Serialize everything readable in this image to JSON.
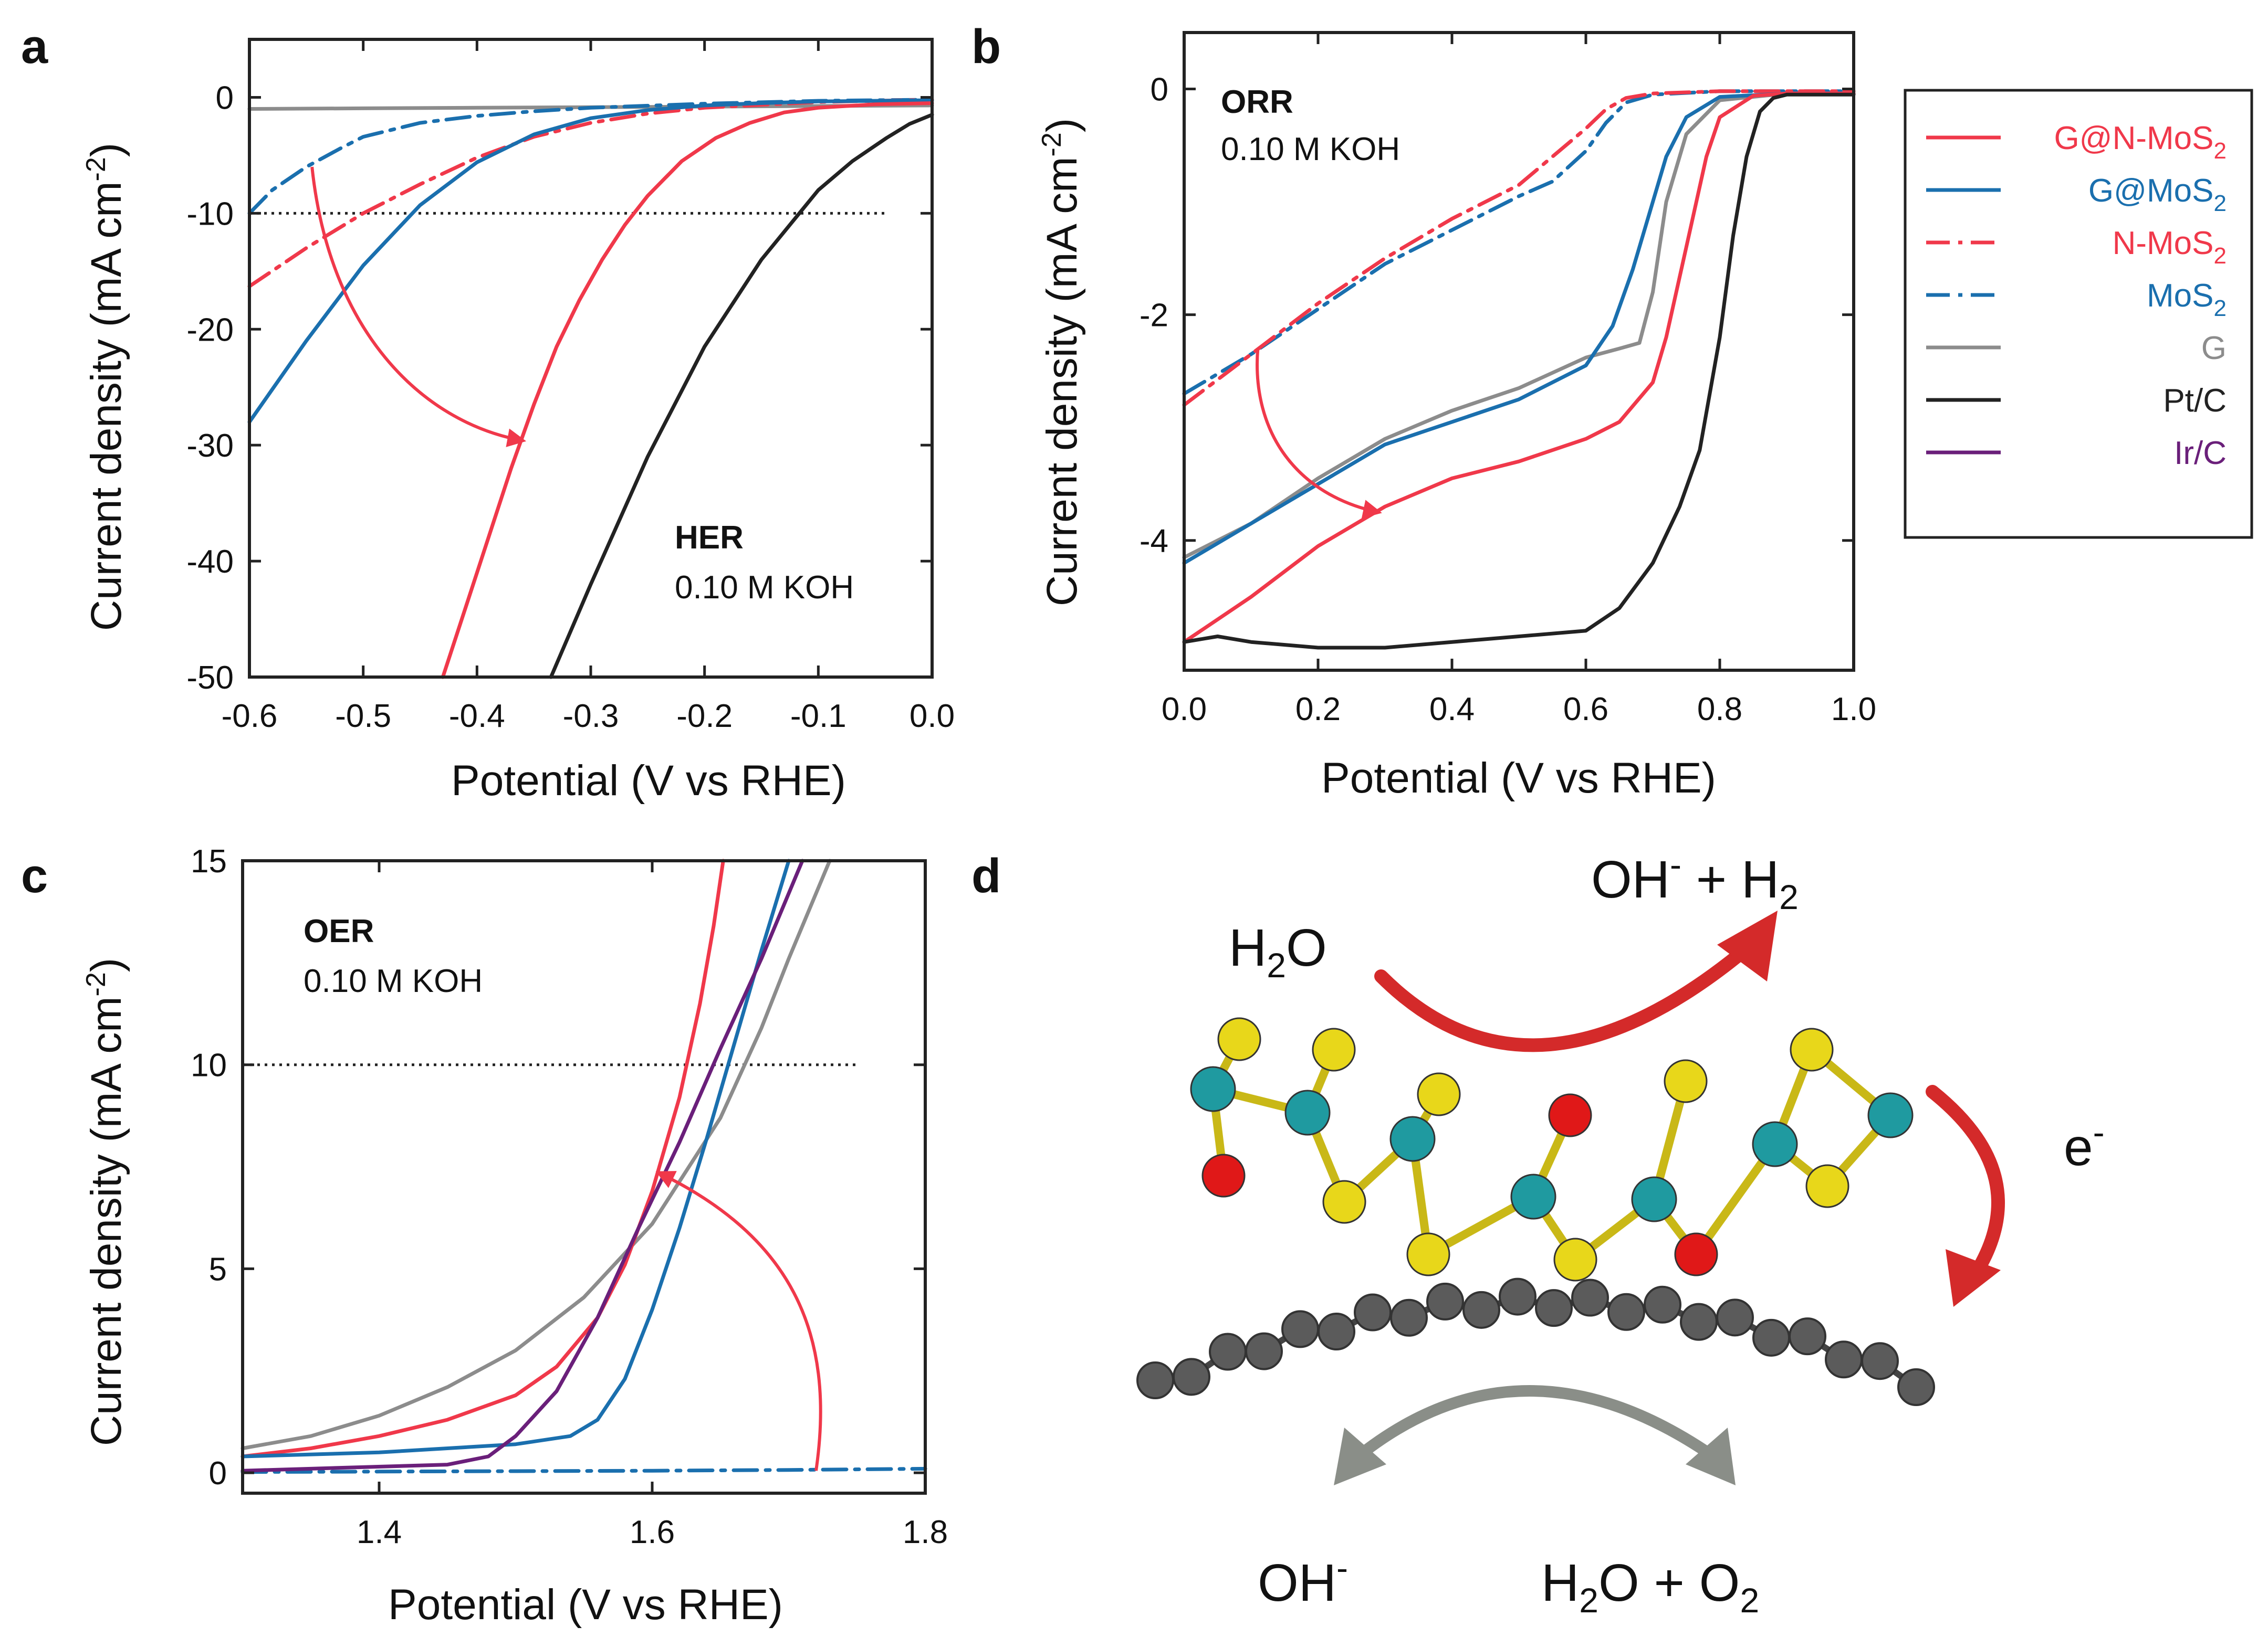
{
  "colors": {
    "gnmos2": "#f0384a",
    "gmos2": "#1a6fae",
    "nmos2": "#f0384a",
    "mos2": "#1a6fae",
    "g": "#8c8c8c",
    "ptc": "#222222",
    "irc": "#6a1f7a",
    "arrow_red": "#d42a2a",
    "arrow_grey": "#8a8e88"
  },
  "legend": [
    {
      "key": "gnmos2",
      "base": "G@N-MoS",
      "sub": "2",
      "dash": false
    },
    {
      "key": "gmos2",
      "base": "G@MoS",
      "sub": "2",
      "dash": false
    },
    {
      "key": "nmos2",
      "base": "N-MoS",
      "sub": "2",
      "dash": true
    },
    {
      "key": "mos2",
      "base": "MoS",
      "sub": "2",
      "dash": true
    },
    {
      "key": "g",
      "base": "G",
      "sub": "",
      "dash": false
    },
    {
      "key": "ptc",
      "base": "Pt/C",
      "sub": "",
      "dash": false
    },
    {
      "key": "irc",
      "base": "Ir/C",
      "sub": "",
      "dash": false
    }
  ],
  "chart_data": [
    {
      "id": "a",
      "type": "line",
      "panel_label": "a",
      "annotation_bold": "HER",
      "annotation": "0.10 M KOH",
      "xlabel": "Potential (V vs RHE)",
      "ylabel": "Current density (mA cm",
      "ylabel_sup": "-2",
      "xlim": [
        -0.6,
        0.0
      ],
      "ylim": [
        -50,
        5
      ],
      "xticks": [
        -0.6,
        -0.5,
        -0.4,
        -0.3,
        -0.2,
        -0.1,
        0.0
      ],
      "xticklabels": [
        "-0.6",
        "-0.5",
        "-0.4",
        "-0.3",
        "-0.2",
        "-0.1",
        "0.0"
      ],
      "yticks": [
        0,
        -10,
        -20,
        -30,
        -40,
        -50
      ],
      "yticklabels": [
        "0",
        "-10",
        "-20",
        "-30",
        "-40",
        "-50"
      ],
      "ref_line": {
        "y": -10,
        "x": [
          -0.6,
          -0.04
        ]
      },
      "series": [
        {
          "name": "G",
          "key": "g",
          "dash": false,
          "x": [
            -0.6,
            -0.5,
            -0.4,
            -0.3,
            -0.2,
            -0.1,
            0.0
          ],
          "y": [
            -1.0,
            -0.95,
            -0.9,
            -0.85,
            -0.8,
            -0.75,
            -0.7
          ]
        },
        {
          "name": "MoS2",
          "key": "mos2",
          "dash": true,
          "x": [
            -0.6,
            -0.58,
            -0.55,
            -0.52,
            -0.5,
            -0.45,
            -0.4,
            -0.35,
            -0.3,
            -0.2,
            -0.1,
            0.0
          ],
          "y": [
            -10,
            -8.0,
            -6.0,
            -4.4,
            -3.4,
            -2.2,
            -1.6,
            -1.2,
            -0.9,
            -0.55,
            -0.3,
            -0.2
          ]
        },
        {
          "name": "N-MoS2",
          "key": "nmos2",
          "dash": true,
          "x": [
            -0.6,
            -0.55,
            -0.5,
            -0.45,
            -0.4,
            -0.35,
            -0.3,
            -0.25,
            -0.2,
            -0.1,
            0.0
          ],
          "y": [
            -16.3,
            -13.0,
            -10.0,
            -7.5,
            -5.2,
            -3.4,
            -2.2,
            -1.4,
            -0.9,
            -0.4,
            -0.2
          ]
        },
        {
          "name": "G@MoS2",
          "key": "gmos2",
          "dash": false,
          "x": [
            -0.6,
            -0.55,
            -0.5,
            -0.45,
            -0.4,
            -0.35,
            -0.3,
            -0.25,
            -0.2,
            -0.15,
            -0.1,
            0.0
          ],
          "y": [
            -28,
            -21,
            -14.5,
            -9.3,
            -5.6,
            -3.2,
            -1.8,
            -1.1,
            -0.7,
            -0.5,
            -0.35,
            -0.25
          ]
        },
        {
          "name": "G@N-MoS2",
          "key": "gnmos2",
          "dash": false,
          "x": [
            -0.43,
            -0.41,
            -0.39,
            -0.37,
            -0.35,
            -0.33,
            -0.31,
            -0.29,
            -0.27,
            -0.25,
            -0.22,
            -0.19,
            -0.16,
            -0.13,
            -0.1,
            -0.05,
            0.0
          ],
          "y": [
            -50,
            -44,
            -38,
            -32,
            -26.5,
            -21.5,
            -17.5,
            -14,
            -11,
            -8.5,
            -5.5,
            -3.5,
            -2.2,
            -1.3,
            -0.9,
            -0.6,
            -0.5
          ]
        },
        {
          "name": "Pt/C",
          "key": "ptc",
          "dash": false,
          "x": [
            -0.335,
            -0.3,
            -0.25,
            -0.2,
            -0.15,
            -0.1,
            -0.07,
            -0.04,
            -0.02,
            0.0
          ],
          "y": [
            -50,
            -42,
            -31,
            -21.5,
            -14,
            -8,
            -5.5,
            -3.5,
            -2.3,
            -1.5
          ]
        }
      ],
      "arrow": {
        "points": [
          [
            -0.545,
            -6
          ],
          [
            -0.53,
            -20
          ],
          [
            -0.45,
            -28
          ],
          [
            -0.36,
            -29.6
          ]
        ]
      }
    },
    {
      "id": "b",
      "type": "line",
      "panel_label": "b",
      "annotation_bold": "ORR",
      "annotation": "0.10 M KOH",
      "xlabel": "Potential (V vs RHE)",
      "ylabel": "Current density (mA cm",
      "ylabel_sup": "-2",
      "xlim": [
        0.0,
        1.0
      ],
      "ylim": [
        -5.15,
        0.5
      ],
      "xticks": [
        0.0,
        0.2,
        0.4,
        0.6,
        0.8,
        1.0
      ],
      "xticklabels": [
        "0.0",
        "0.2",
        "0.4",
        "0.6",
        "0.8",
        "1.0"
      ],
      "yticks": [
        0,
        -2,
        -4
      ],
      "yticklabels": [
        "0",
        "-2",
        "-4"
      ],
      "series": [
        {
          "name": "MoS2",
          "key": "mos2",
          "dash": true,
          "x": [
            0.0,
            0.1,
            0.2,
            0.3,
            0.4,
            0.5,
            0.55,
            0.6,
            0.63,
            0.66,
            0.7,
            0.8,
            0.9,
            1.0
          ],
          "y": [
            -2.7,
            -2.35,
            -1.95,
            -1.55,
            -1.25,
            -0.95,
            -0.82,
            -0.55,
            -0.3,
            -0.12,
            -0.05,
            -0.02,
            -0.02,
            -0.02
          ]
        },
        {
          "name": "N-MoS2",
          "key": "nmos2",
          "dash": true,
          "x": [
            0.0,
            0.1,
            0.2,
            0.3,
            0.4,
            0.5,
            0.55,
            0.6,
            0.63,
            0.66,
            0.7,
            0.8,
            0.9,
            1.0
          ],
          "y": [
            -2.8,
            -2.35,
            -1.9,
            -1.5,
            -1.15,
            -0.85,
            -0.6,
            -0.35,
            -0.18,
            -0.08,
            -0.04,
            -0.02,
            -0.02,
            -0.02
          ]
        },
        {
          "name": "G",
          "key": "g",
          "dash": false,
          "x": [
            0.0,
            0.1,
            0.2,
            0.3,
            0.4,
            0.5,
            0.6,
            0.65,
            0.68,
            0.7,
            0.72,
            0.75,
            0.8,
            0.9,
            1.0
          ],
          "y": [
            -4.15,
            -3.85,
            -3.45,
            -3.1,
            -2.85,
            -2.65,
            -2.38,
            -2.3,
            -2.25,
            -1.8,
            -1.0,
            -0.4,
            -0.1,
            -0.04,
            -0.04
          ]
        },
        {
          "name": "G@MoS2",
          "key": "gmos2",
          "dash": false,
          "x": [
            0.0,
            0.1,
            0.2,
            0.3,
            0.4,
            0.5,
            0.6,
            0.64,
            0.67,
            0.7,
            0.72,
            0.75,
            0.8,
            0.9,
            1.0
          ],
          "y": [
            -4.2,
            -3.85,
            -3.5,
            -3.15,
            -2.95,
            -2.75,
            -2.45,
            -2.1,
            -1.6,
            -1.0,
            -0.6,
            -0.25,
            -0.07,
            -0.04,
            -0.04
          ]
        },
        {
          "name": "G@N-MoS2",
          "key": "gnmos2",
          "dash": false,
          "x": [
            0.0,
            0.1,
            0.2,
            0.3,
            0.4,
            0.5,
            0.6,
            0.65,
            0.7,
            0.72,
            0.75,
            0.78,
            0.8,
            0.85,
            0.9,
            1.0
          ],
          "y": [
            -4.9,
            -4.5,
            -4.05,
            -3.7,
            -3.45,
            -3.3,
            -3.1,
            -2.95,
            -2.6,
            -2.2,
            -1.4,
            -0.6,
            -0.25,
            -0.06,
            -0.04,
            -0.04
          ]
        },
        {
          "name": "Pt/C",
          "key": "ptc",
          "dash": false,
          "x": [
            0.0,
            0.05,
            0.1,
            0.2,
            0.3,
            0.4,
            0.5,
            0.6,
            0.65,
            0.7,
            0.74,
            0.77,
            0.8,
            0.82,
            0.84,
            0.86,
            0.88,
            0.9,
            1.0
          ],
          "y": [
            -4.9,
            -4.85,
            -4.9,
            -4.95,
            -4.95,
            -4.9,
            -4.85,
            -4.8,
            -4.6,
            -4.2,
            -3.7,
            -3.2,
            -2.2,
            -1.3,
            -0.6,
            -0.2,
            -0.08,
            -0.05,
            -0.05
          ]
        }
      ],
      "arrow": {
        "points": [
          [
            0.11,
            -2.3
          ],
          [
            0.1,
            -3.05
          ],
          [
            0.17,
            -3.6
          ],
          [
            0.29,
            -3.75
          ]
        ]
      }
    },
    {
      "id": "c",
      "type": "line",
      "panel_label": "c",
      "annotation_bold": "OER",
      "annotation": "0.10 M KOH",
      "xlabel": "Potential (V vs RHE)",
      "ylabel": "Current density (mA cm",
      "ylabel_sup": "-2",
      "xlim": [
        1.3,
        1.8
      ],
      "ylim": [
        -0.5,
        15
      ],
      "xticks": [
        1.4,
        1.6,
        1.8
      ],
      "xticklabels": [
        "1.4",
        "1.6",
        "1.8"
      ],
      "yticks": [
        0,
        5,
        10,
        15
      ],
      "yticklabels": [
        "0",
        "5",
        "10",
        "15"
      ],
      "ref_line": {
        "y": 10,
        "x": [
          1.3,
          1.75
        ]
      },
      "series": [
        {
          "name": "MoS2",
          "key": "mos2",
          "dash": true,
          "x": [
            1.3,
            1.4,
            1.5,
            1.6,
            1.7,
            1.8
          ],
          "y": [
            0.02,
            0.03,
            0.04,
            0.05,
            0.07,
            0.1
          ]
        },
        {
          "name": "G",
          "key": "g",
          "dash": false,
          "x": [
            1.3,
            1.35,
            1.4,
            1.45,
            1.5,
            1.55,
            1.6,
            1.65,
            1.68,
            1.7,
            1.73
          ],
          "y": [
            0.6,
            0.9,
            1.4,
            2.1,
            3.0,
            4.3,
            6.1,
            8.7,
            10.9,
            12.6,
            15.0
          ]
        },
        {
          "name": "G@N-MoS2",
          "key": "gnmos2",
          "dash": false,
          "x": [
            1.3,
            1.35,
            1.4,
            1.45,
            1.5,
            1.53,
            1.56,
            1.58,
            1.6,
            1.62,
            1.635,
            1.645,
            1.652
          ],
          "y": [
            0.4,
            0.6,
            0.9,
            1.3,
            1.9,
            2.6,
            3.8,
            5.1,
            6.9,
            9.2,
            11.5,
            13.4,
            15.0
          ]
        },
        {
          "name": "G@MoS2",
          "key": "gmos2",
          "dash": false,
          "x": [
            1.3,
            1.4,
            1.5,
            1.54,
            1.56,
            1.58,
            1.6,
            1.62,
            1.64,
            1.66,
            1.68,
            1.7
          ],
          "y": [
            0.4,
            0.5,
            0.7,
            0.9,
            1.3,
            2.3,
            4.0,
            6.0,
            8.2,
            10.5,
            12.8,
            15.0
          ]
        },
        {
          "name": "Ir/C",
          "key": "irc",
          "dash": false,
          "x": [
            1.3,
            1.45,
            1.48,
            1.5,
            1.53,
            1.56,
            1.59,
            1.62,
            1.65,
            1.68,
            1.71
          ],
          "y": [
            0.05,
            0.2,
            0.4,
            0.9,
            2.0,
            3.8,
            6.0,
            8.1,
            10.4,
            12.6,
            15.0
          ]
        }
      ],
      "arrow": {
        "points": [
          [
            1.72,
            0.05
          ],
          [
            1.735,
            3.5
          ],
          [
            1.7,
            5.8
          ],
          [
            1.605,
            7.35
          ]
        ]
      }
    }
  ],
  "panel_d": {
    "label": "d",
    "h2o": "H",
    "h2o_sub": "2",
    "h2o_tail": "O",
    "oh_h2_base": "OH",
    "oh_h2_sup": "-",
    "oh_h2_mid": " + H",
    "oh_h2_sub": "2",
    "e_base": "e",
    "e_sup": "-",
    "oh_base": "OH",
    "oh_sup": "-",
    "h2o_o2_base": "H",
    "h2o_o2_sub1": "2",
    "h2o_o2_mid": "O + O",
    "h2o_o2_sub2": "2",
    "atom_colors": {
      "mo": "#1f9aa0",
      "s": "#e8d71a",
      "n": "#e01818",
      "c": "#5b5b5b"
    }
  }
}
